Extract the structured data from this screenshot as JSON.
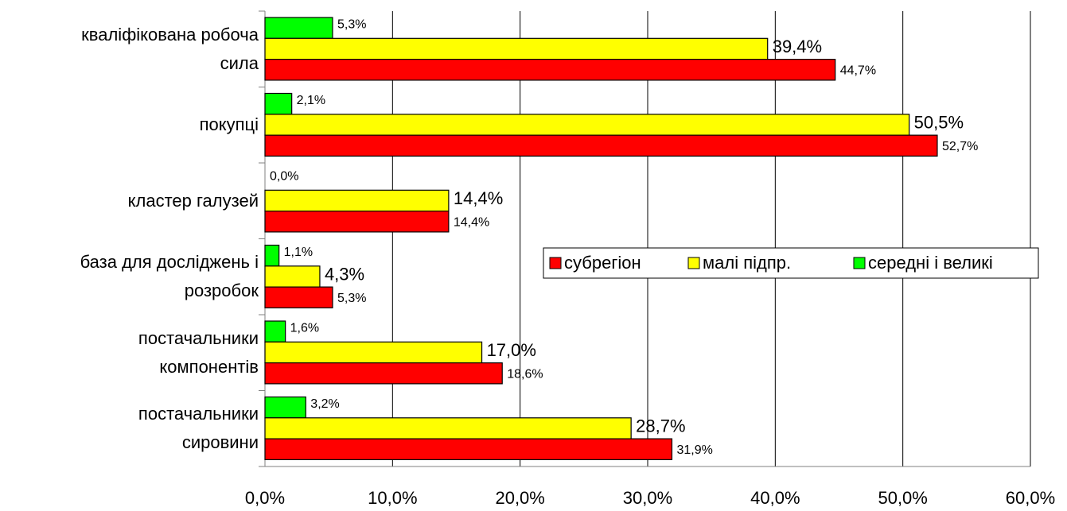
{
  "chart_data": {
    "type": "bar",
    "orientation": "horizontal",
    "categories": [
      "кваліфікована робоча\nсила",
      "покупці",
      "кластер галузей",
      "база для досліджень і\nрозробок",
      "постачальники\nкомпонентів",
      "постачальники\nсировини"
    ],
    "series": [
      {
        "name": "субрегіон",
        "color": "#ff0000",
        "values": [
          44.7,
          52.7,
          14.4,
          5.3,
          18.6,
          31.9
        ],
        "value_labels": [
          "44,7%",
          "52,7%",
          "14,4%",
          "5,3%",
          "18,6%",
          "31,9%"
        ]
      },
      {
        "name": "малі підпр.",
        "color": "#ffff00",
        "values": [
          39.4,
          50.5,
          14.4,
          4.3,
          17.0,
          28.7
        ],
        "value_labels": [
          "39,4%",
          "50,5%",
          "14,4%",
          "4,3%",
          "17,0%",
          "28,7%"
        ]
      },
      {
        "name": "середні і великі",
        "color": "#00ff00",
        "values": [
          5.3,
          2.1,
          0.0,
          1.1,
          1.6,
          3.2
        ],
        "value_labels": [
          "5,3%",
          "2,1%",
          "0,0%",
          "1,1%",
          "1,6%",
          "3,2%"
        ]
      }
    ],
    "xlim": [
      0,
      60
    ],
    "xticks": [
      {
        "value": 0,
        "label": "0,0%"
      },
      {
        "value": 10,
        "label": "10,0%"
      },
      {
        "value": 20,
        "label": "20,0%"
      },
      {
        "value": 30,
        "label": "30,0%"
      },
      {
        "value": 40,
        "label": "40,0%"
      },
      {
        "value": 50,
        "label": "50,0%"
      },
      {
        "value": 60,
        "label": "60,0%"
      }
    ],
    "grid": true,
    "legend": "right"
  }
}
